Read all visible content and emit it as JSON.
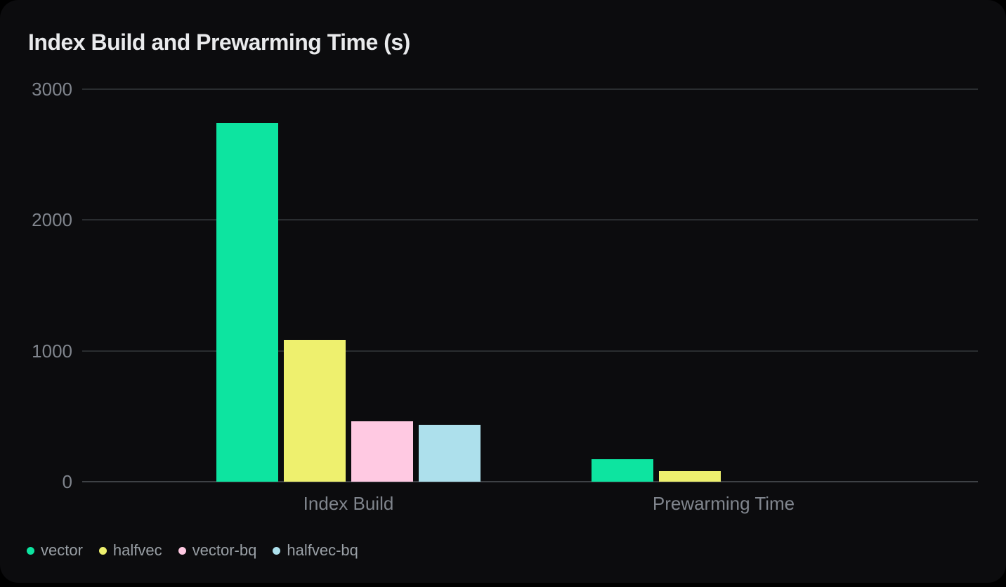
{
  "chart_data": {
    "type": "bar",
    "title": "Index Build and Prewarming Time (s)",
    "categories": [
      "Index Build",
      "Prewarming Time"
    ],
    "series": [
      {
        "name": "vector",
        "color": "#0DE4A0",
        "values": [
          2740,
          170
        ]
      },
      {
        "name": "halfvec",
        "color": "#EEF06E",
        "values": [
          1085,
          80
        ]
      },
      {
        "name": "vector-bq",
        "color": "#FFC9E2",
        "values": [
          460,
          0
        ]
      },
      {
        "name": "halfvec-bq",
        "color": "#ADE0EC",
        "values": [
          435,
          0
        ]
      }
    ],
    "ylabel": "",
    "xlabel": "",
    "ylim": [
      0,
      3000
    ],
    "yticks": [
      0,
      1000,
      2000,
      3000
    ],
    "grid": true,
    "legend_position": "bottom-left",
    "unit": "s"
  },
  "colors": {
    "page_bg": "#000000",
    "card_bg": "#0C0C0E",
    "title_text": "#E9EAEC",
    "axis_text": "#80858D",
    "legend_text": "#9AA0A6",
    "gridline": "#2A2D30",
    "zero_line": "#3E4145"
  }
}
